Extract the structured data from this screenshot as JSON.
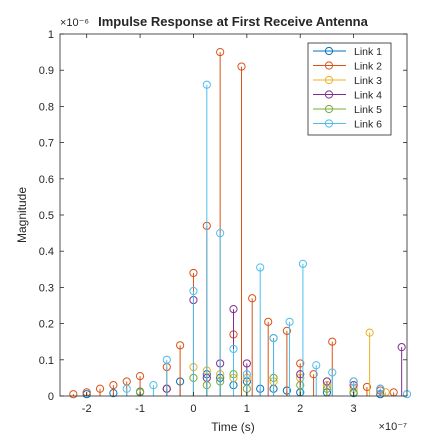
{
  "chart_data": {
    "type": "stem",
    "title": "Impulse Response at First Receive Antenna",
    "xlabel": "Time (s)",
    "ylabel": "Magnitude",
    "x_exponent_label": "×10⁻⁷",
    "y_exponent_label": "×10⁻⁶",
    "xlim": [
      -2.5,
      4.0
    ],
    "ylim": [
      0,
      1
    ],
    "x_ticks": [
      -2,
      -1,
      0,
      1,
      2,
      3
    ],
    "x_tick_labels": [
      "-2",
      "-1",
      "0",
      "1",
      "2",
      "3"
    ],
    "y_ticks": [
      0,
      0.1,
      0.2,
      0.3,
      0.4,
      0.5,
      0.6,
      0.7,
      0.8,
      0.9,
      1
    ],
    "y_tick_labels": [
      "0",
      "0.1",
      "0.2",
      "0.3",
      "0.4",
      "0.5",
      "0.6",
      "0.7",
      "0.8",
      "0.9",
      "1"
    ],
    "grid": false,
    "legend_position": "top-right",
    "series": [
      {
        "name": "Link 1",
        "color": "#0072BD",
        "points": [
          [
            -2.0,
            0.005
          ],
          [
            -1.5,
            0.008
          ],
          [
            -1.0,
            0.012
          ],
          [
            -0.5,
            0.02
          ],
          [
            -0.25,
            0.04
          ],
          [
            0.25,
            0.06
          ],
          [
            0.5,
            0.05
          ],
          [
            0.75,
            0.03
          ],
          [
            1.0,
            0.04
          ],
          [
            1.25,
            0.02
          ],
          [
            1.5,
            0.02
          ],
          [
            1.75,
            0.015
          ],
          [
            2.0,
            0.01
          ],
          [
            2.5,
            0.01
          ],
          [
            3.0,
            0.008
          ],
          [
            3.5,
            0.005
          ]
        ]
      },
      {
        "name": "Link 2",
        "color": "#D95319",
        "points": [
          [
            -2.25,
            0.005
          ],
          [
            -2.0,
            0.01
          ],
          [
            -1.75,
            0.02
          ],
          [
            -1.5,
            0.03
          ],
          [
            -1.25,
            0.04
          ],
          [
            -1.0,
            0.055
          ],
          [
            -0.5,
            0.08
          ],
          [
            -0.25,
            0.14
          ],
          [
            0.0,
            0.34
          ],
          [
            0.25,
            0.47
          ],
          [
            0.5,
            0.95
          ],
          [
            0.75,
            0.17
          ],
          [
            0.9,
            0.91
          ],
          [
            1.1,
            0.27
          ],
          [
            1.4,
            0.205
          ],
          [
            1.75,
            0.18
          ],
          [
            2.0,
            0.09
          ],
          [
            2.25,
            0.06
          ],
          [
            2.6,
            0.15
          ],
          [
            3.0,
            0.04
          ],
          [
            3.25,
            0.025
          ],
          [
            3.5,
            0.015
          ],
          [
            3.75,
            0.01
          ]
        ]
      },
      {
        "name": "Link 3",
        "color": "#EDB120",
        "points": [
          [
            -1.0,
            0.01
          ],
          [
            -0.5,
            0.02
          ],
          [
            0.0,
            0.08
          ],
          [
            0.25,
            0.07
          ],
          [
            0.5,
            0.06
          ],
          [
            0.75,
            0.05
          ],
          [
            1.0,
            0.05
          ],
          [
            1.5,
            0.04
          ],
          [
            2.0,
            0.05
          ],
          [
            2.5,
            0.03
          ],
          [
            3.0,
            0.02
          ],
          [
            3.3,
            0.175
          ],
          [
            3.6,
            0.01
          ]
        ]
      },
      {
        "name": "Link 4",
        "color": "#7E2F8E",
        "points": [
          [
            -0.5,
            0.02
          ],
          [
            0.0,
            0.265
          ],
          [
            0.25,
            0.05
          ],
          [
            0.5,
            0.09
          ],
          [
            0.75,
            0.24
          ],
          [
            1.0,
            0.09
          ],
          [
            1.5,
            0.16
          ],
          [
            2.0,
            0.06
          ],
          [
            2.5,
            0.04
          ],
          [
            3.0,
            0.03
          ],
          [
            3.5,
            0.02
          ],
          [
            3.9,
            0.135
          ]
        ]
      },
      {
        "name": "Link 5",
        "color": "#77AC30",
        "points": [
          [
            -1.0,
            0.01
          ],
          [
            0.0,
            0.05
          ],
          [
            0.25,
            0.03
          ],
          [
            0.5,
            0.04
          ],
          [
            0.75,
            0.06
          ],
          [
            1.0,
            0.02
          ],
          [
            1.5,
            0.05
          ],
          [
            2.0,
            0.03
          ],
          [
            2.5,
            0.02
          ],
          [
            3.0,
            0.01
          ]
        ]
      },
      {
        "name": "Link 6",
        "color": "#4DBEEE",
        "points": [
          [
            -1.25,
            0.02
          ],
          [
            -0.75,
            0.03
          ],
          [
            -0.5,
            0.1
          ],
          [
            0.0,
            0.29
          ],
          [
            0.25,
            0.86
          ],
          [
            0.5,
            0.45
          ],
          [
            0.75,
            0.13
          ],
          [
            1.0,
            0.06
          ],
          [
            1.25,
            0.355
          ],
          [
            1.5,
            0.16
          ],
          [
            1.8,
            0.205
          ],
          [
            2.05,
            0.365
          ],
          [
            2.3,
            0.085
          ],
          [
            2.6,
            0.065
          ],
          [
            3.0,
            0.04
          ],
          [
            3.5,
            0.02
          ],
          [
            4.0,
            0.005
          ]
        ]
      }
    ]
  }
}
